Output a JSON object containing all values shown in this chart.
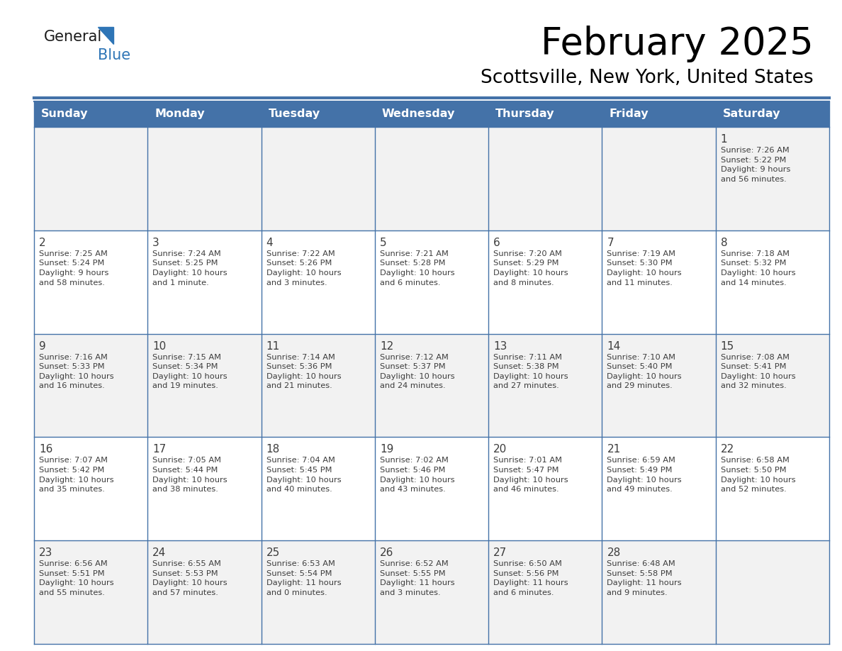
{
  "title": "February 2025",
  "subtitle": "Scottsville, New York, United States",
  "header_bg_color": "#4472A8",
  "header_text_color": "#FFFFFF",
  "days_of_week": [
    "Sunday",
    "Monday",
    "Tuesday",
    "Wednesday",
    "Thursday",
    "Friday",
    "Saturday"
  ],
  "row_colors": [
    "#F2F2F2",
    "#FFFFFF",
    "#F2F2F2",
    "#FFFFFF",
    "#F2F2F2"
  ],
  "border_color": "#4472A8",
  "text_color": "#3D3D3D",
  "day_num_color": "#3D3D3D",
  "logo_general_color": "#1A1A1A",
  "logo_blue_color": "#2E75B6",
  "logo_triangle_color": "#2E75B6",
  "calendar_data": [
    [
      null,
      null,
      null,
      null,
      null,
      null,
      {
        "day": "1",
        "sunrise": "7:26 AM",
        "sunset": "5:22 PM",
        "daylight": "9 hours\nand 56 minutes."
      }
    ],
    [
      {
        "day": "2",
        "sunrise": "7:25 AM",
        "sunset": "5:24 PM",
        "daylight": "9 hours\nand 58 minutes."
      },
      {
        "day": "3",
        "sunrise": "7:24 AM",
        "sunset": "5:25 PM",
        "daylight": "10 hours\nand 1 minute."
      },
      {
        "day": "4",
        "sunrise": "7:22 AM",
        "sunset": "5:26 PM",
        "daylight": "10 hours\nand 3 minutes."
      },
      {
        "day": "5",
        "sunrise": "7:21 AM",
        "sunset": "5:28 PM",
        "daylight": "10 hours\nand 6 minutes."
      },
      {
        "day": "6",
        "sunrise": "7:20 AM",
        "sunset": "5:29 PM",
        "daylight": "10 hours\nand 8 minutes."
      },
      {
        "day": "7",
        "sunrise": "7:19 AM",
        "sunset": "5:30 PM",
        "daylight": "10 hours\nand 11 minutes."
      },
      {
        "day": "8",
        "sunrise": "7:18 AM",
        "sunset": "5:32 PM",
        "daylight": "10 hours\nand 14 minutes."
      }
    ],
    [
      {
        "day": "9",
        "sunrise": "7:16 AM",
        "sunset": "5:33 PM",
        "daylight": "10 hours\nand 16 minutes."
      },
      {
        "day": "10",
        "sunrise": "7:15 AM",
        "sunset": "5:34 PM",
        "daylight": "10 hours\nand 19 minutes."
      },
      {
        "day": "11",
        "sunrise": "7:14 AM",
        "sunset": "5:36 PM",
        "daylight": "10 hours\nand 21 minutes."
      },
      {
        "day": "12",
        "sunrise": "7:12 AM",
        "sunset": "5:37 PM",
        "daylight": "10 hours\nand 24 minutes."
      },
      {
        "day": "13",
        "sunrise": "7:11 AM",
        "sunset": "5:38 PM",
        "daylight": "10 hours\nand 27 minutes."
      },
      {
        "day": "14",
        "sunrise": "7:10 AM",
        "sunset": "5:40 PM",
        "daylight": "10 hours\nand 29 minutes."
      },
      {
        "day": "15",
        "sunrise": "7:08 AM",
        "sunset": "5:41 PM",
        "daylight": "10 hours\nand 32 minutes."
      }
    ],
    [
      {
        "day": "16",
        "sunrise": "7:07 AM",
        "sunset": "5:42 PM",
        "daylight": "10 hours\nand 35 minutes."
      },
      {
        "day": "17",
        "sunrise": "7:05 AM",
        "sunset": "5:44 PM",
        "daylight": "10 hours\nand 38 minutes."
      },
      {
        "day": "18",
        "sunrise": "7:04 AM",
        "sunset": "5:45 PM",
        "daylight": "10 hours\nand 40 minutes."
      },
      {
        "day": "19",
        "sunrise": "7:02 AM",
        "sunset": "5:46 PM",
        "daylight": "10 hours\nand 43 minutes."
      },
      {
        "day": "20",
        "sunrise": "7:01 AM",
        "sunset": "5:47 PM",
        "daylight": "10 hours\nand 46 minutes."
      },
      {
        "day": "21",
        "sunrise": "6:59 AM",
        "sunset": "5:49 PM",
        "daylight": "10 hours\nand 49 minutes."
      },
      {
        "day": "22",
        "sunrise": "6:58 AM",
        "sunset": "5:50 PM",
        "daylight": "10 hours\nand 52 minutes."
      }
    ],
    [
      {
        "day": "23",
        "sunrise": "6:56 AM",
        "sunset": "5:51 PM",
        "daylight": "10 hours\nand 55 minutes."
      },
      {
        "day": "24",
        "sunrise": "6:55 AM",
        "sunset": "5:53 PM",
        "daylight": "10 hours\nand 57 minutes."
      },
      {
        "day": "25",
        "sunrise": "6:53 AM",
        "sunset": "5:54 PM",
        "daylight": "11 hours\nand 0 minutes."
      },
      {
        "day": "26",
        "sunrise": "6:52 AM",
        "sunset": "5:55 PM",
        "daylight": "11 hours\nand 3 minutes."
      },
      {
        "day": "27",
        "sunrise": "6:50 AM",
        "sunset": "5:56 PM",
        "daylight": "11 hours\nand 6 minutes."
      },
      {
        "day": "28",
        "sunrise": "6:48 AM",
        "sunset": "5:58 PM",
        "daylight": "11 hours\nand 9 minutes."
      },
      null
    ]
  ]
}
